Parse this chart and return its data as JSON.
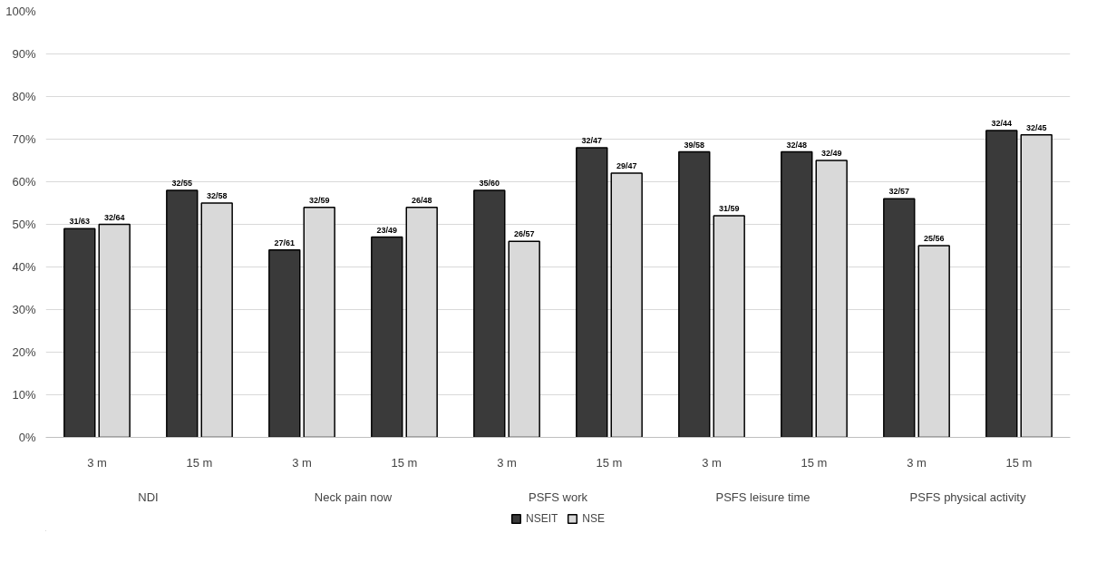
{
  "chart_data": {
    "type": "bar",
    "categories": [
      "3 m",
      "15 m",
      "3 m",
      "15 m",
      "3 m",
      "15 m",
      "3 m",
      "15 m",
      "3 m",
      "15 m"
    ],
    "annotations": [
      "NDI",
      "Neck pain now",
      "PSFS work",
      "PSFS leisure time",
      "PSFS physical activity"
    ],
    "series": [
      {
        "name": "NSEIT",
        "color": "#3a3a3a",
        "values": [
          49,
          58,
          44,
          47,
          58,
          68,
          67,
          67,
          56,
          72
        ],
        "value_labels": [
          "31/63",
          "32/55",
          "27/61",
          "23/49",
          "35/60",
          "32/47",
          "39/58",
          "32/48",
          "32/57",
          "32/44"
        ]
      },
      {
        "name": "NSE",
        "color": "#d9d9d9",
        "values": [
          50,
          55,
          54,
          54,
          46,
          62,
          52,
          65,
          45,
          71
        ],
        "value_labels": [
          "32/64",
          "32/58",
          "32/59",
          "26/48",
          "26/57",
          "29/47",
          "31/59",
          "32/49",
          "25/56",
          "32/45"
        ]
      }
    ],
    "ylim": [
      0,
      100
    ],
    "yticks": [
      {
        "value": 0,
        "label": "0%"
      },
      {
        "value": 10,
        "label": "10%"
      },
      {
        "value": 20,
        "label": "20%"
      },
      {
        "value": 30,
        "label": "30%"
      },
      {
        "value": 40,
        "label": "40%"
      },
      {
        "value": 50,
        "label": "50%"
      },
      {
        "value": 60,
        "label": "60%"
      },
      {
        "value": 70,
        "label": "70%"
      },
      {
        "value": 80,
        "label": "80%"
      },
      {
        "value": 90,
        "label": "90%"
      },
      {
        "value": 100,
        "label": "100%"
      }
    ],
    "grid": "y",
    "legend": "bottom"
  }
}
